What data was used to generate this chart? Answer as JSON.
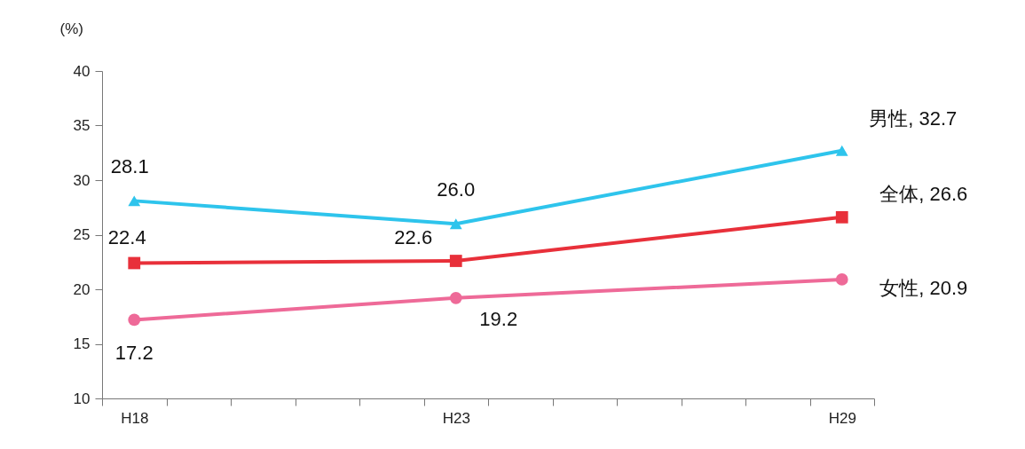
{
  "chart_data": {
    "type": "line",
    "ylabel": "(%)",
    "categories": [
      "H18",
      null,
      null,
      null,
      null,
      "H23",
      null,
      null,
      null,
      null,
      null,
      "H29"
    ],
    "ylim": [
      10,
      40
    ],
    "yticks": [
      10,
      15,
      20,
      25,
      30,
      35,
      40
    ],
    "grid": false,
    "series": [
      {
        "color": "#2ec4ec",
        "marker": "triangle",
        "values": [
          28.1,
          null,
          null,
          null,
          null,
          26.0,
          null,
          null,
          null,
          null,
          null,
          32.7
        ],
        "value_labels": [
          "28.1",
          null,
          null,
          null,
          null,
          "26.0",
          null,
          null,
          null,
          null,
          null,
          "男性, 32.7"
        ]
      },
      {
        "color": "#e8303a",
        "marker": "square",
        "values": [
          22.4,
          null,
          null,
          null,
          null,
          22.6,
          null,
          null,
          null,
          null,
          null,
          26.6
        ],
        "value_labels": [
          "22.4",
          null,
          null,
          null,
          null,
          "22.6",
          null,
          null,
          null,
          null,
          null,
          "全体, 26.6"
        ]
      },
      {
        "color": "#ee6a98",
        "marker": "circle",
        "values": [
          17.2,
          null,
          null,
          null,
          null,
          19.2,
          null,
          null,
          null,
          null,
          null,
          20.9
        ],
        "value_labels": [
          "17.2",
          null,
          null,
          null,
          null,
          "19.2",
          null,
          null,
          null,
          null,
          null,
          "女性, 20.9"
        ]
      }
    ]
  }
}
